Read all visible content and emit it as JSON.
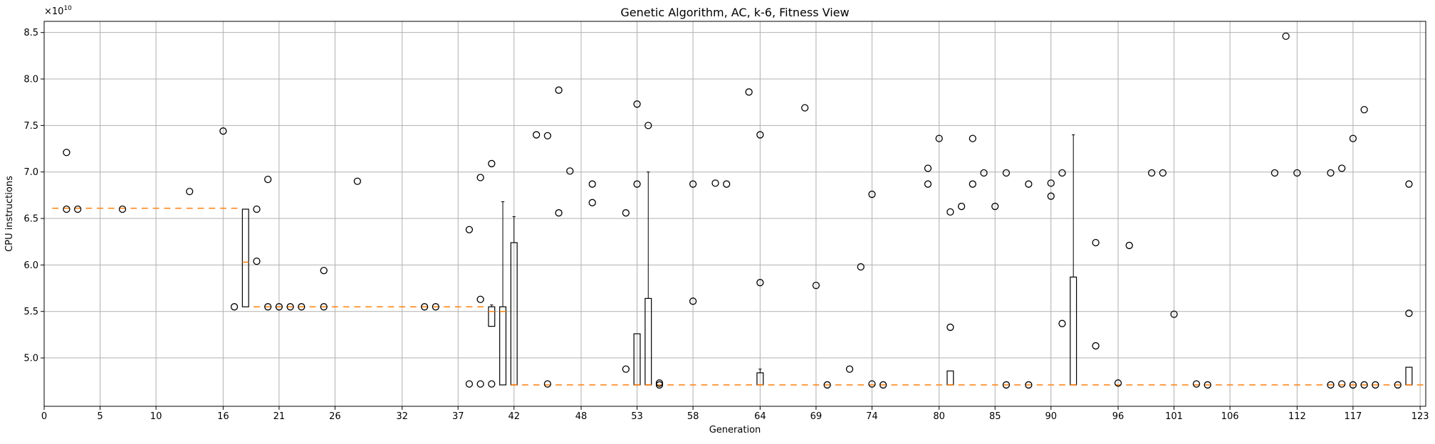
{
  "chart_data": {
    "type": "boxplot",
    "title": "Genetic Algorithm, AC, k-6, Fitness View",
    "xlabel": "Generation",
    "ylabel": "CPU instructions",
    "y_multiplier_label": "×10",
    "y_multiplier_exp": "10",
    "xlim": [
      0,
      123.5
    ],
    "ylim": [
      4.48,
      8.62
    ],
    "x_ticks": [
      0,
      5,
      10,
      16,
      21,
      26,
      32,
      37,
      42,
      48,
      53,
      58,
      64,
      69,
      74,
      80,
      85,
      90,
      96,
      101,
      106,
      112,
      117,
      123
    ],
    "y_ticks": [
      5.0,
      5.5,
      6.0,
      6.5,
      7.0,
      7.5,
      8.0,
      8.5
    ],
    "y_tick_labels": [
      "5.0",
      "5.5",
      "6.0",
      "6.5",
      "7.0",
      "7.5",
      "8.0",
      "8.5"
    ],
    "grid": true,
    "median_color": "#ff7f0e",
    "flat_median_segments": [
      {
        "x_from": 1,
        "x_to": 17,
        "value": 6.61
      },
      {
        "x_from": 19,
        "x_to": 39,
        "value": 5.55
      },
      {
        "x_from": 42,
        "x_to": 123,
        "value": 4.71
      }
    ],
    "boxes": [
      {
        "generation": 18,
        "q1": 5.55,
        "median": 6.03,
        "q3": 6.6
      },
      {
        "generation": 40,
        "q1": 5.34,
        "median": 5.5,
        "q3": 5.55,
        "whisker_high": 5.57
      },
      {
        "generation": 41,
        "q1": 4.71,
        "median": 5.5,
        "q3": 5.55,
        "whisker_high": 6.68
      },
      {
        "generation": 42,
        "q1": 4.71,
        "median": 4.71,
        "q3": 6.24,
        "whisker_high": 6.52
      },
      {
        "generation": 53,
        "q1": 4.71,
        "median": 4.71,
        "q3": 5.26
      },
      {
        "generation": 54,
        "q1": 4.71,
        "median": 4.71,
        "q3": 5.64,
        "whisker_high": 7.0
      },
      {
        "generation": 64,
        "q1": 4.71,
        "median": 4.71,
        "q3": 4.84,
        "whisker_high": 4.88
      },
      {
        "generation": 81,
        "q1": 4.71,
        "median": 4.71,
        "q3": 4.86
      },
      {
        "generation": 92,
        "q1": 4.71,
        "median": 4.71,
        "q3": 5.87,
        "whisker_high": 7.4
      },
      {
        "generation": 122,
        "q1": 4.71,
        "median": 4.71,
        "q3": 4.9
      }
    ],
    "outliers": [
      [
        2,
        7.21
      ],
      [
        2,
        6.6
      ],
      [
        3,
        6.6
      ],
      [
        7,
        6.6
      ],
      [
        13,
        6.79
      ],
      [
        16,
        7.44
      ],
      [
        17,
        5.55
      ],
      [
        19,
        6.6
      ],
      [
        19,
        6.04
      ],
      [
        20,
        6.92
      ],
      [
        20,
        5.55
      ],
      [
        21,
        5.55
      ],
      [
        22,
        5.55
      ],
      [
        23,
        5.55
      ],
      [
        25,
        5.94
      ],
      [
        25,
        5.55
      ],
      [
        28,
        6.9
      ],
      [
        34,
        5.55
      ],
      [
        35,
        5.55
      ],
      [
        38,
        6.38
      ],
      [
        38,
        4.72
      ],
      [
        39,
        6.94
      ],
      [
        39,
        5.63
      ],
      [
        39,
        4.72
      ],
      [
        40,
        7.09
      ],
      [
        40,
        4.72
      ],
      [
        44,
        7.4
      ],
      [
        45,
        7.39
      ],
      [
        45,
        4.72
      ],
      [
        46,
        7.88
      ],
      [
        46,
        6.56
      ],
      [
        47,
        7.01
      ],
      [
        49,
        6.87
      ],
      [
        49,
        6.67
      ],
      [
        52,
        6.56
      ],
      [
        52,
        4.88
      ],
      [
        53,
        7.73
      ],
      [
        53,
        6.87
      ],
      [
        54,
        7.5
      ],
      [
        55,
        4.73
      ],
      [
        55,
        4.71
      ],
      [
        58,
        6.87
      ],
      [
        58,
        5.61
      ],
      [
        60,
        6.88
      ],
      [
        61,
        6.87
      ],
      [
        63,
        7.86
      ],
      [
        64,
        7.4
      ],
      [
        64,
        5.81
      ],
      [
        68,
        7.69
      ],
      [
        69,
        5.78
      ],
      [
        70,
        4.71
      ],
      [
        72,
        4.88
      ],
      [
        73,
        5.98
      ],
      [
        74,
        6.76
      ],
      [
        74,
        4.72
      ],
      [
        75,
        4.71
      ],
      [
        79,
        7.04
      ],
      [
        79,
        6.87
      ],
      [
        80,
        7.36
      ],
      [
        81,
        6.57
      ],
      [
        81,
        5.33
      ],
      [
        82,
        6.63
      ],
      [
        83,
        7.36
      ],
      [
        83,
        6.87
      ],
      [
        84,
        6.99
      ],
      [
        85,
        6.63
      ],
      [
        86,
        6.99
      ],
      [
        86,
        4.71
      ],
      [
        88,
        6.87
      ],
      [
        88,
        4.71
      ],
      [
        90,
        6.88
      ],
      [
        90,
        6.74
      ],
      [
        91,
        6.99
      ],
      [
        91,
        5.37
      ],
      [
        94,
        6.24
      ],
      [
        94,
        5.13
      ],
      [
        96,
        4.73
      ],
      [
        97,
        6.21
      ],
      [
        99,
        6.99
      ],
      [
        100,
        6.99
      ],
      [
        101,
        5.47
      ],
      [
        103,
        4.72
      ],
      [
        104,
        4.71
      ],
      [
        110,
        6.99
      ],
      [
        111,
        8.46
      ],
      [
        112,
        6.99
      ],
      [
        115,
        6.99
      ],
      [
        115,
        4.71
      ],
      [
        116,
        7.04
      ],
      [
        116,
        4.72
      ],
      [
        117,
        7.36
      ],
      [
        117,
        4.71
      ],
      [
        118,
        7.67
      ],
      [
        118,
        4.71
      ],
      [
        119,
        4.71
      ],
      [
        121,
        4.71
      ],
      [
        122,
        6.87
      ],
      [
        122,
        5.48
      ]
    ]
  }
}
